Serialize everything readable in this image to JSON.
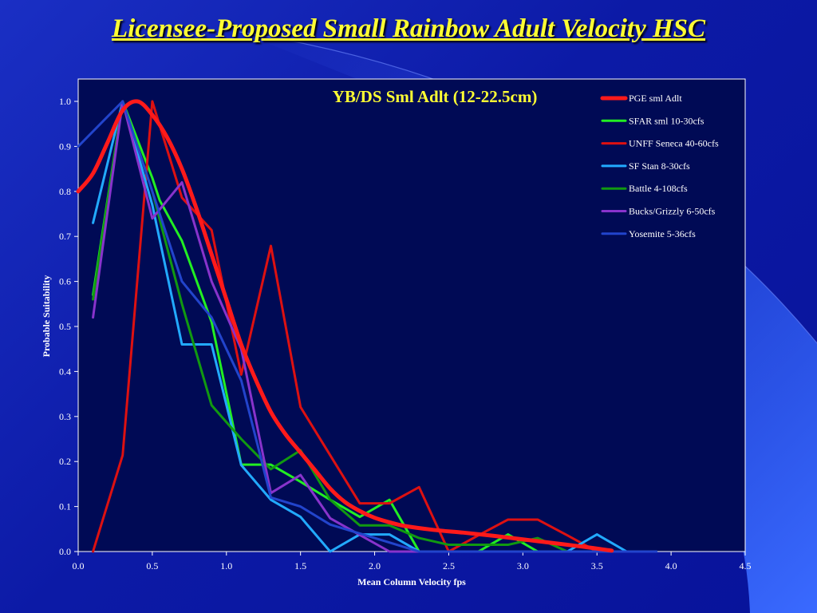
{
  "slide": {
    "title": "Licensee-Proposed Small Rainbow Adult Velocity HSC"
  },
  "chart_data": {
    "type": "line",
    "title": "YB/DS Sml Adlt (12-22.5cm)",
    "xlabel": "Mean Column Velocity fps",
    "ylabel": "Probable Suitability",
    "xlim": [
      0,
      4.5
    ],
    "ylim": [
      0,
      1.0
    ],
    "x_ticks": [
      "0.0",
      "0.5",
      "1.0",
      "1.5",
      "2.0",
      "2.5",
      "3.0",
      "3.5",
      "4.0",
      "4.5"
    ],
    "y_ticks": [
      "0.0",
      "0.1",
      "0.2",
      "0.3",
      "0.4",
      "0.5",
      "0.6",
      "0.7",
      "0.8",
      "0.9",
      "1.0"
    ],
    "grid": false,
    "legend_position": "top-right",
    "series": [
      {
        "name": "PGE sml Adlt",
        "color": "#ff1a1a",
        "width": 5,
        "smooth": true,
        "points": [
          [
            0,
            0.8
          ],
          [
            0.1,
            0.84
          ],
          [
            0.2,
            0.91
          ],
          [
            0.3,
            0.98
          ],
          [
            0.4,
            1.0
          ],
          [
            0.5,
            0.97
          ],
          [
            0.6,
            0.92
          ],
          [
            0.7,
            0.85
          ],
          [
            0.8,
            0.76
          ],
          [
            0.9,
            0.66
          ],
          [
            1.0,
            0.56
          ],
          [
            1.1,
            0.46
          ],
          [
            1.2,
            0.38
          ],
          [
            1.3,
            0.31
          ],
          [
            1.4,
            0.26
          ],
          [
            1.5,
            0.22
          ],
          [
            1.6,
            0.18
          ],
          [
            1.7,
            0.14
          ],
          [
            1.8,
            0.11
          ],
          [
            1.9,
            0.09
          ],
          [
            2.0,
            0.075
          ],
          [
            2.1,
            0.065
          ],
          [
            2.2,
            0.057
          ],
          [
            2.4,
            0.048
          ],
          [
            2.6,
            0.042
          ],
          [
            2.8,
            0.035
          ],
          [
            3.0,
            0.027
          ],
          [
            3.2,
            0.019
          ],
          [
            3.4,
            0.011
          ],
          [
            3.6,
            0.002
          ]
        ]
      },
      {
        "name": "SFAR sml 10-30cfs",
        "color": "#22ee22",
        "width": 3,
        "smooth": false,
        "points": [
          [
            0.1,
            0.57
          ],
          [
            0.3,
            1.0
          ],
          [
            0.5,
            0.83
          ],
          [
            0.55,
            0.78
          ],
          [
            0.7,
            0.69
          ],
          [
            0.9,
            0.51
          ],
          [
            1.1,
            0.193
          ],
          [
            1.3,
            0.193
          ],
          [
            1.5,
            0.155
          ],
          [
            1.7,
            0.115
          ],
          [
            1.9,
            0.077
          ],
          [
            2.1,
            0.115
          ],
          [
            2.3,
            0.0
          ],
          [
            2.5,
            0.0
          ],
          [
            2.7,
            0.0
          ],
          [
            2.9,
            0.038
          ],
          [
            3.1,
            0.0
          ],
          [
            3.3,
            0.0
          ]
        ]
      },
      {
        "name": "UNFF Seneca 40-60cfs",
        "color": "#dd1111",
        "width": 3,
        "smooth": false,
        "points": [
          [
            0.1,
            0.0
          ],
          [
            0.3,
            0.214
          ],
          [
            0.5,
            1.0
          ],
          [
            0.7,
            0.786
          ],
          [
            0.8,
            0.75
          ],
          [
            0.9,
            0.714
          ],
          [
            1.1,
            0.393
          ],
          [
            1.3,
            0.679
          ],
          [
            1.5,
            0.321
          ],
          [
            1.7,
            0.214
          ],
          [
            1.9,
            0.107
          ],
          [
            2.1,
            0.107
          ],
          [
            2.3,
            0.143
          ],
          [
            2.5,
            0.0
          ],
          [
            2.7,
            0.036
          ],
          [
            2.9,
            0.071
          ],
          [
            3.1,
            0.071
          ],
          [
            3.3,
            0.036
          ],
          [
            3.5,
            0.0
          ]
        ]
      },
      {
        "name": "SF Stan 8-30cfs",
        "color": "#22aaff",
        "width": 3,
        "smooth": false,
        "points": [
          [
            0.1,
            0.73
          ],
          [
            0.3,
            1.0
          ],
          [
            0.5,
            0.77
          ],
          [
            0.7,
            0.46
          ],
          [
            0.9,
            0.46
          ],
          [
            1.1,
            0.192
          ],
          [
            1.3,
            0.115
          ],
          [
            1.5,
            0.077
          ],
          [
            1.7,
            0.0
          ],
          [
            1.9,
            0.038
          ],
          [
            2.1,
            0.038
          ],
          [
            2.3,
            0.0
          ],
          [
            2.5,
            0.0
          ],
          [
            3.3,
            0.0
          ],
          [
            3.5,
            0.038
          ],
          [
            3.7,
            0.0
          ],
          [
            3.9,
            0.0
          ]
        ]
      },
      {
        "name": "Battle 4-108cfs",
        "color": "#119911",
        "width": 3,
        "smooth": false,
        "points": [
          [
            0.1,
            0.56
          ],
          [
            0.3,
            1.0
          ],
          [
            0.5,
            0.8
          ],
          [
            0.7,
            0.55
          ],
          [
            0.9,
            0.325
          ],
          [
            1.1,
            0.25
          ],
          [
            1.3,
            0.183
          ],
          [
            1.5,
            0.225
          ],
          [
            1.7,
            0.115
          ],
          [
            1.9,
            0.058
          ],
          [
            2.1,
            0.058
          ],
          [
            2.3,
            0.03
          ],
          [
            2.5,
            0.015
          ],
          [
            2.7,
            0.015
          ],
          [
            2.9,
            0.015
          ],
          [
            3.1,
            0.03
          ],
          [
            3.3,
            0.0
          ],
          [
            3.5,
            0.0
          ]
        ]
      },
      {
        "name": "Bucks/Grizzly 6-50cfs",
        "color": "#8833cc",
        "width": 3,
        "smooth": false,
        "points": [
          [
            0.1,
            0.52
          ],
          [
            0.3,
            1.0
          ],
          [
            0.5,
            0.74
          ],
          [
            0.7,
            0.82
          ],
          [
            0.9,
            0.6
          ],
          [
            1.1,
            0.45
          ],
          [
            1.3,
            0.13
          ],
          [
            1.5,
            0.17
          ],
          [
            1.7,
            0.074
          ],
          [
            1.9,
            0.037
          ],
          [
            2.1,
            0.0
          ],
          [
            2.3,
            0.0
          ],
          [
            2.5,
            0.0
          ]
        ]
      },
      {
        "name": "Yosemite 5-36cfs",
        "color": "#2244cc",
        "width": 3,
        "smooth": false,
        "points": [
          [
            0,
            0.9
          ],
          [
            0.3,
            1.0
          ],
          [
            0.5,
            0.8
          ],
          [
            0.7,
            0.6
          ],
          [
            0.9,
            0.52
          ],
          [
            1.1,
            0.38
          ],
          [
            1.3,
            0.12
          ],
          [
            1.5,
            0.1
          ],
          [
            1.7,
            0.06
          ],
          [
            1.9,
            0.04
          ],
          [
            2.1,
            0.02
          ],
          [
            2.3,
            0.0
          ],
          [
            2.5,
            0.0
          ],
          [
            3.9,
            0.0
          ]
        ]
      }
    ]
  }
}
